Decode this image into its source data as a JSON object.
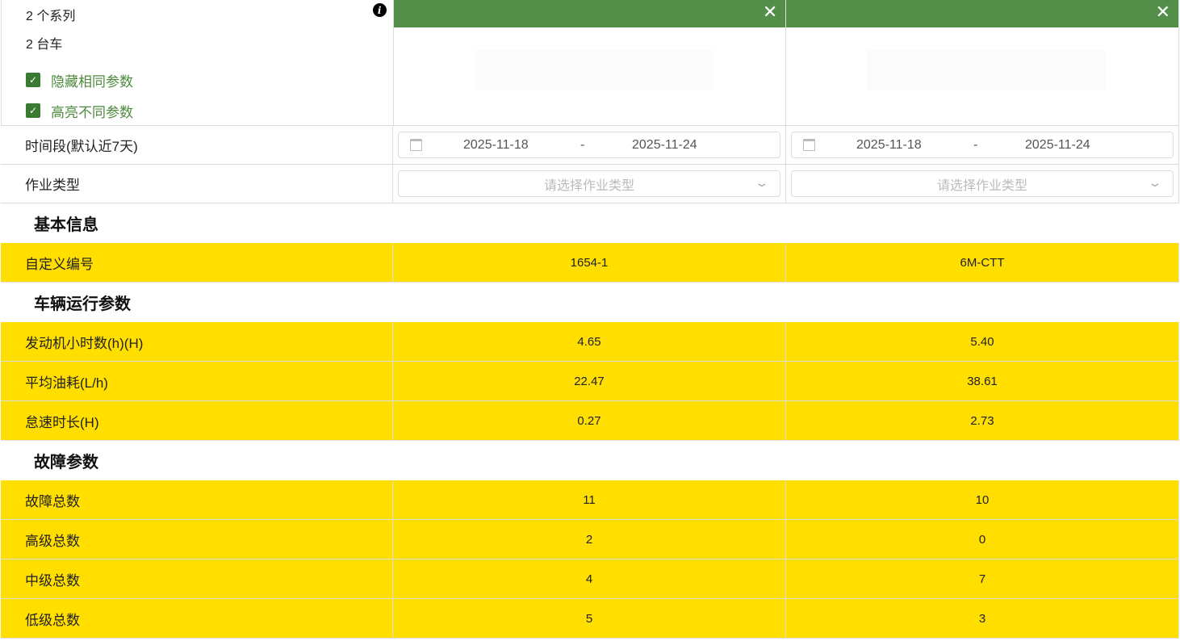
{
  "summary": {
    "series_count": "2 个系列",
    "vehicle_count": "2 台车",
    "hide_same": {
      "label": "隐藏相同参数",
      "checked": true
    },
    "highlight_diff": {
      "label": "高亮不同参数",
      "checked": true
    }
  },
  "colors": {
    "header_green": "#548f4a",
    "highlight": "#ffde00",
    "checkbox": "#3a7a32"
  },
  "filters": {
    "period_label": "时间段(默认近7天)",
    "type_label": "作业类型",
    "type_placeholder": "请选择作业类型"
  },
  "vehicles": [
    {
      "start": "2025-11-18",
      "end": "2025-11-24"
    },
    {
      "start": "2025-11-18",
      "end": "2025-11-24"
    }
  ],
  "sections": [
    {
      "title": "基本信息",
      "rows": [
        {
          "label": "自定义编号",
          "values": [
            "1654-1",
            "6M-CTT"
          ]
        }
      ]
    },
    {
      "title": "车辆运行参数",
      "rows": [
        {
          "label": "发动机小时数(h)(H)",
          "values": [
            "4.65",
            "5.40"
          ]
        },
        {
          "label": "平均油耗(L/h)",
          "values": [
            "22.47",
            "38.61"
          ]
        },
        {
          "label": "怠速时长(H)",
          "values": [
            "0.27",
            "2.73"
          ]
        }
      ]
    },
    {
      "title": "故障参数",
      "rows": [
        {
          "label": "故障总数",
          "values": [
            "11",
            "10"
          ]
        },
        {
          "label": "高级总数",
          "values": [
            "2",
            "0"
          ]
        },
        {
          "label": "中级总数",
          "values": [
            "4",
            "7"
          ]
        },
        {
          "label": "低级总数",
          "values": [
            "5",
            "3"
          ]
        }
      ]
    }
  ]
}
